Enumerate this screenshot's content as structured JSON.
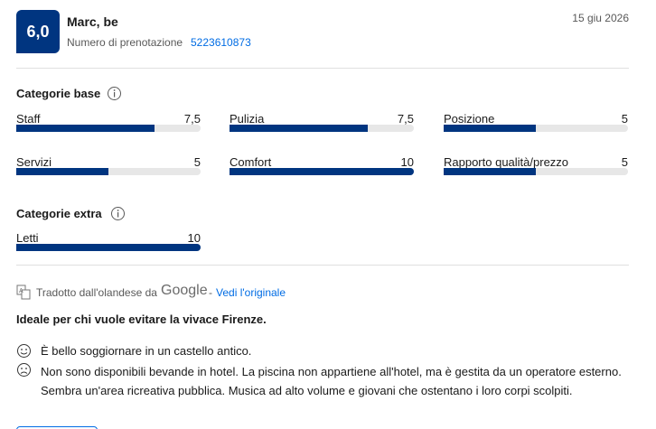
{
  "review": {
    "score": "6,0",
    "name": "Marc, be",
    "booking_label": "Numero di prenotazione",
    "booking_number": "5223610873",
    "date": "15 giu 2026"
  },
  "rating_scale": [
    0,
    10
  ],
  "base_categories": {
    "title": "Categorie base",
    "items": [
      {
        "name": "Staff",
        "value": {
          "value": 7.5,
          "label": "7,5"
        }
      },
      {
        "name": "Pulizia",
        "value": {
          "value": 7.5,
          "label": "7,5"
        }
      },
      {
        "name": "Posizione",
        "value": 5
      },
      {
        "name": "Servizi",
        "value": 5
      },
      {
        "name": "Comfort",
        "value": 10
      },
      {
        "name": "Rapporto qualità/prezzo",
        "value": 5
      }
    ]
  },
  "extra_categories": {
    "title": "Categorie extra",
    "items": [
      {
        "name": "Letti",
        "value": 10
      }
    ]
  },
  "translation": {
    "text": "Tradotto dall'olandese da",
    "provider": "Google",
    "separator": "-",
    "link": "Vedi l'originale"
  },
  "review_title": "Ideale per chi vuole evitare la vivace Firenze.",
  "positive": "È bello soggiornare in un castello antico.",
  "negative": "Non sono disponibili bevande in hotel. La piscina non appartiene all'hotel, ma è gestita da un operatore esterno. Sembra un'area ricreativa pubblica. Musica ad alto volume e giovani che ostentano i loro corpi scolpiti."
}
